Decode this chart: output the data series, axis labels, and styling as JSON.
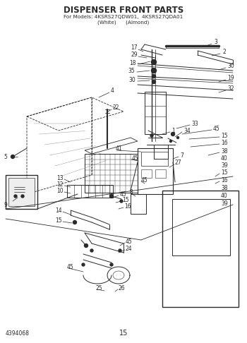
{
  "title_line1": "DISPENSER FRONT PARTS",
  "title_line2": "For Models: 4KSRS27QDW01,  4KSRS27QDA01",
  "title_line3": "(White)      (Almond)",
  "bottom_left": "4394068",
  "bottom_center": "15",
  "bg_color": "#ffffff",
  "fg_color": "#2a2a2a",
  "fig_width": 3.5,
  "fig_height": 4.86,
  "dpi": 100
}
